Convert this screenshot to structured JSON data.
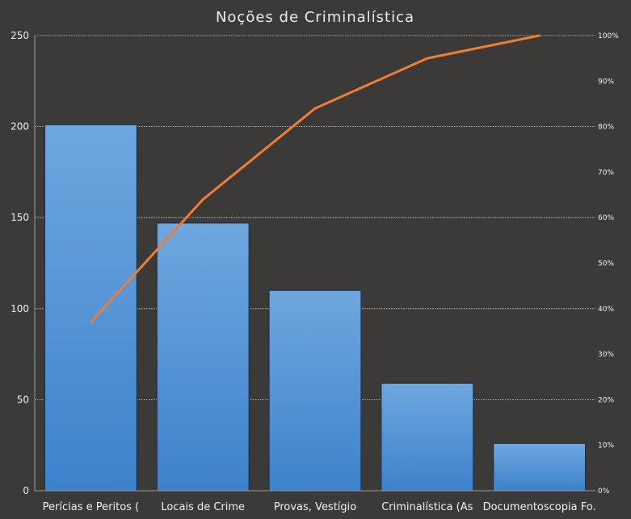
{
  "chart_data": {
    "type": "bar",
    "title": "Noções de Criminalística",
    "categories": [
      "Perícias e Peritos (",
      "Locais de Crime",
      "Provas, Vestígio",
      "Criminalística (As",
      "Documentoscopia  Fo."
    ],
    "series": [
      {
        "type": "bar",
        "values": [
          201,
          147,
          110,
          59,
          26
        ]
      },
      {
        "type": "line",
        "axis": "secondary",
        "values": [
          37,
          64,
          84,
          95,
          100
        ]
      }
    ],
    "ylim": [
      0,
      250
    ],
    "yticks": [
      "0",
      "50",
      "100",
      "150",
      "200",
      "250"
    ],
    "y2lim": [
      0,
      100
    ],
    "y2ticks": [
      "0%",
      "10%",
      "20%",
      "30%",
      "40%",
      "50%",
      "60%",
      "70%",
      "80%",
      "90%",
      "100%"
    ],
    "grid": true,
    "colors": {
      "bar_top": "#6fa7df",
      "bar_bottom": "#3c82cb",
      "bar_stroke": "#1b2e44",
      "line": "#ef7d32",
      "background": "#3b3a39"
    }
  }
}
